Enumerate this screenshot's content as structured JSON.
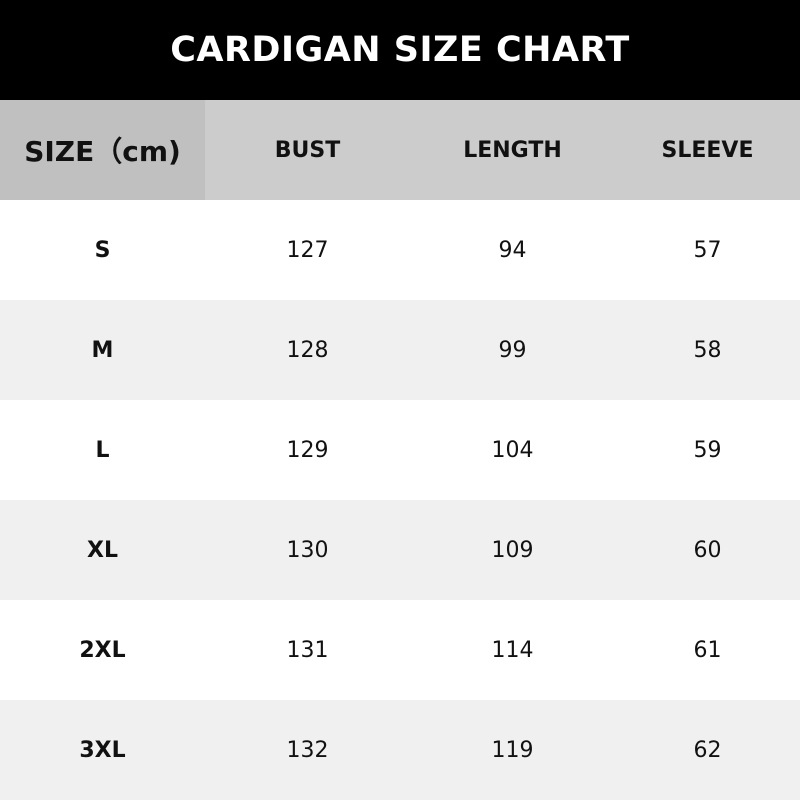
{
  "title": "CARDIGAN SIZE CHART",
  "colors": {
    "title_bg": "#000000",
    "header_bg": "#cccccc",
    "header_first_bg": "#c0c0c0",
    "alt_row_bg": "#f0f0f0"
  },
  "headers": [
    "SIZE（cm)",
    "BUST",
    "LENGTH",
    "SLEEVE"
  ],
  "rows": [
    [
      "S",
      "127",
      "94",
      "57"
    ],
    [
      "M",
      "128",
      "99",
      "58"
    ],
    [
      "L",
      "129",
      "104",
      "59"
    ],
    [
      "XL",
      "130",
      "109",
      "60"
    ],
    [
      "2XL",
      "131",
      "114",
      "61"
    ],
    [
      "3XL",
      "132",
      "119",
      "62"
    ]
  ]
}
